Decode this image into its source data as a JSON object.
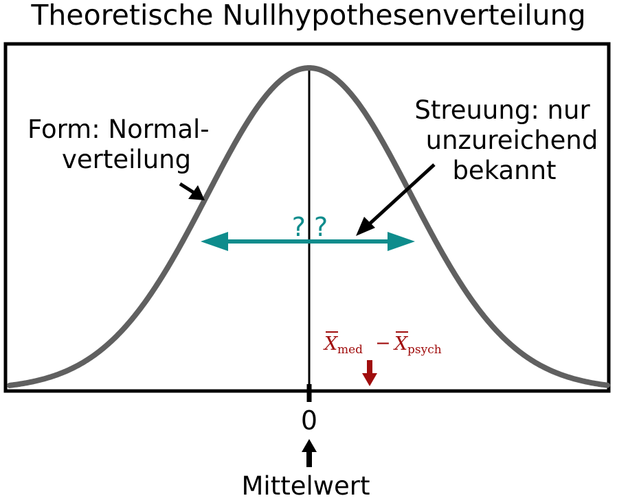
{
  "title": "Theoretische Nullhypothesenverteilung",
  "labels": {
    "form_line1": "Form: Normal-",
    "form_line2": "verteilung",
    "spread_line1": "Streuung: nur",
    "spread_line2": "unzureichend",
    "spread_line3": "bekannt",
    "width_unknown": "? ?",
    "observed_x": "X",
    "observed_sub1": "med",
    "observed_minus": "−",
    "observed_x2": "X",
    "observed_sub2": "psych",
    "tick_zero": "0",
    "mean_label": "Mittelwert"
  },
  "colors": {
    "curve": "#606060",
    "frame": "#000000",
    "spread_arrow": "#0e8c8c",
    "observed": "#a00d0d"
  }
}
